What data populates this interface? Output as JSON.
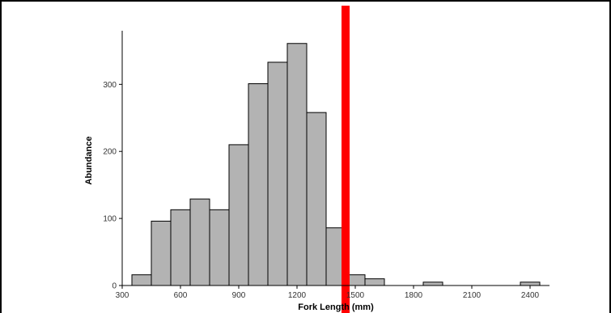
{
  "chart_data": {
    "type": "bar",
    "title": "",
    "xlabel": "Fork Length (mm)",
    "ylabel": "Abundance",
    "xlim": [
      300,
      2500
    ],
    "ylim": [
      0,
      380
    ],
    "xticks": [
      300,
      600,
      900,
      1200,
      1500,
      1800,
      2100,
      2400
    ],
    "yticks": [
      0,
      100,
      200,
      300
    ],
    "bin_width": 100,
    "bins": [
      {
        "x": 400,
        "value": 16
      },
      {
        "x": 500,
        "value": 96
      },
      {
        "x": 600,
        "value": 113
      },
      {
        "x": 700,
        "value": 129
      },
      {
        "x": 800,
        "value": 113
      },
      {
        "x": 900,
        "value": 210
      },
      {
        "x": 1000,
        "value": 301
      },
      {
        "x": 1100,
        "value": 333
      },
      {
        "x": 1200,
        "value": 361
      },
      {
        "x": 1300,
        "value": 258
      },
      {
        "x": 1400,
        "value": 86
      },
      {
        "x": 1500,
        "value": 16
      },
      {
        "x": 1600,
        "value": 10
      },
      {
        "x": 1700,
        "value": 0
      },
      {
        "x": 1800,
        "value": 0
      },
      {
        "x": 1900,
        "value": 5
      },
      {
        "x": 2000,
        "value": 0
      },
      {
        "x": 2100,
        "value": 0
      },
      {
        "x": 2200,
        "value": 0
      },
      {
        "x": 2300,
        "value": 0
      },
      {
        "x": 2400,
        "value": 5
      }
    ],
    "reference_line": {
      "x": 1450,
      "color": "#ff0000"
    },
    "bar_fill": "#b3b3b3",
    "bar_stroke": "#000000",
    "grid": false
  }
}
